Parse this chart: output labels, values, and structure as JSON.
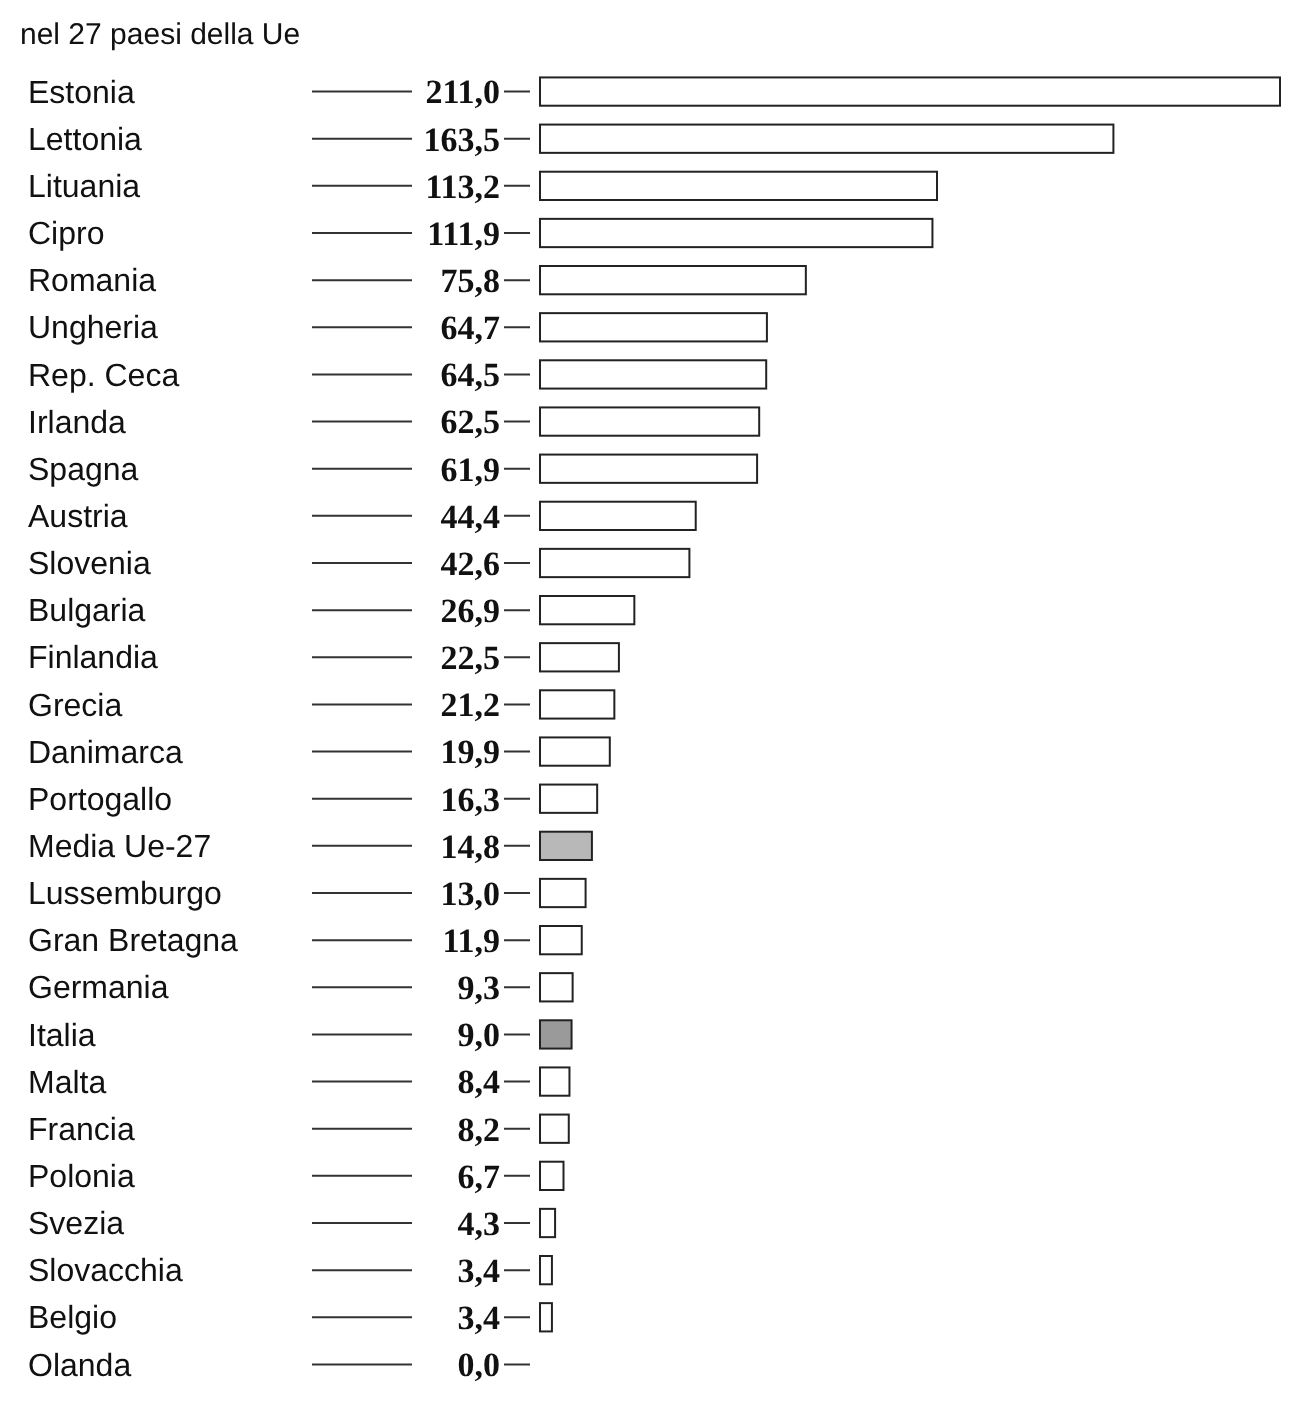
{
  "chart_data": {
    "type": "bar",
    "orientation": "horizontal",
    "title": "nel 27 paesi della Ue",
    "categories": [
      "Estonia",
      "Lettonia",
      "Lituania",
      "Cipro",
      "Romania",
      "Ungheria",
      "Rep. Ceca",
      "Irlanda",
      "Spagna",
      "Austria",
      "Slovenia",
      "Bulgaria",
      "Finlandia",
      "Grecia",
      "Danimarca",
      "Portogallo",
      "Media Ue-27",
      "Lussemburgo",
      "Gran Bretagna",
      "Germania",
      "Italia",
      "Malta",
      "Francia",
      "Polonia",
      "Svezia",
      "Slovacchia",
      "Belgio",
      "Olanda"
    ],
    "values": [
      211.0,
      163.5,
      113.2,
      111.9,
      75.8,
      64.7,
      64.5,
      62.5,
      61.9,
      44.4,
      42.6,
      26.9,
      22.5,
      21.2,
      19.9,
      16.3,
      14.8,
      13.0,
      11.9,
      9.3,
      9.0,
      8.4,
      8.2,
      6.7,
      4.3,
      3.4,
      3.4,
      0.0
    ],
    "value_labels": [
      "211,0",
      "163,5",
      "113,2",
      "111,9",
      "75,8",
      "64,7",
      "64,5",
      "62,5",
      "61,9",
      "44,4",
      "42,6",
      "26,9",
      "22,5",
      "21,2",
      "19,9",
      "16,3",
      "14,8",
      "13,0",
      "11,9",
      "9,3",
      "9,0",
      "8,4",
      "8,2",
      "6,7",
      "4,3",
      "3,4",
      "3,4",
      "0,0"
    ],
    "colors": [
      "#ffffff",
      "#ffffff",
      "#ffffff",
      "#ffffff",
      "#ffffff",
      "#ffffff",
      "#ffffff",
      "#ffffff",
      "#ffffff",
      "#ffffff",
      "#ffffff",
      "#ffffff",
      "#ffffff",
      "#ffffff",
      "#ffffff",
      "#ffffff",
      "#b8b8b8",
      "#ffffff",
      "#ffffff",
      "#ffffff",
      "#9a9a9a",
      "#ffffff",
      "#ffffff",
      "#ffffff",
      "#ffffff",
      "#ffffff",
      "#ffffff",
      "#ffffff"
    ]
  }
}
